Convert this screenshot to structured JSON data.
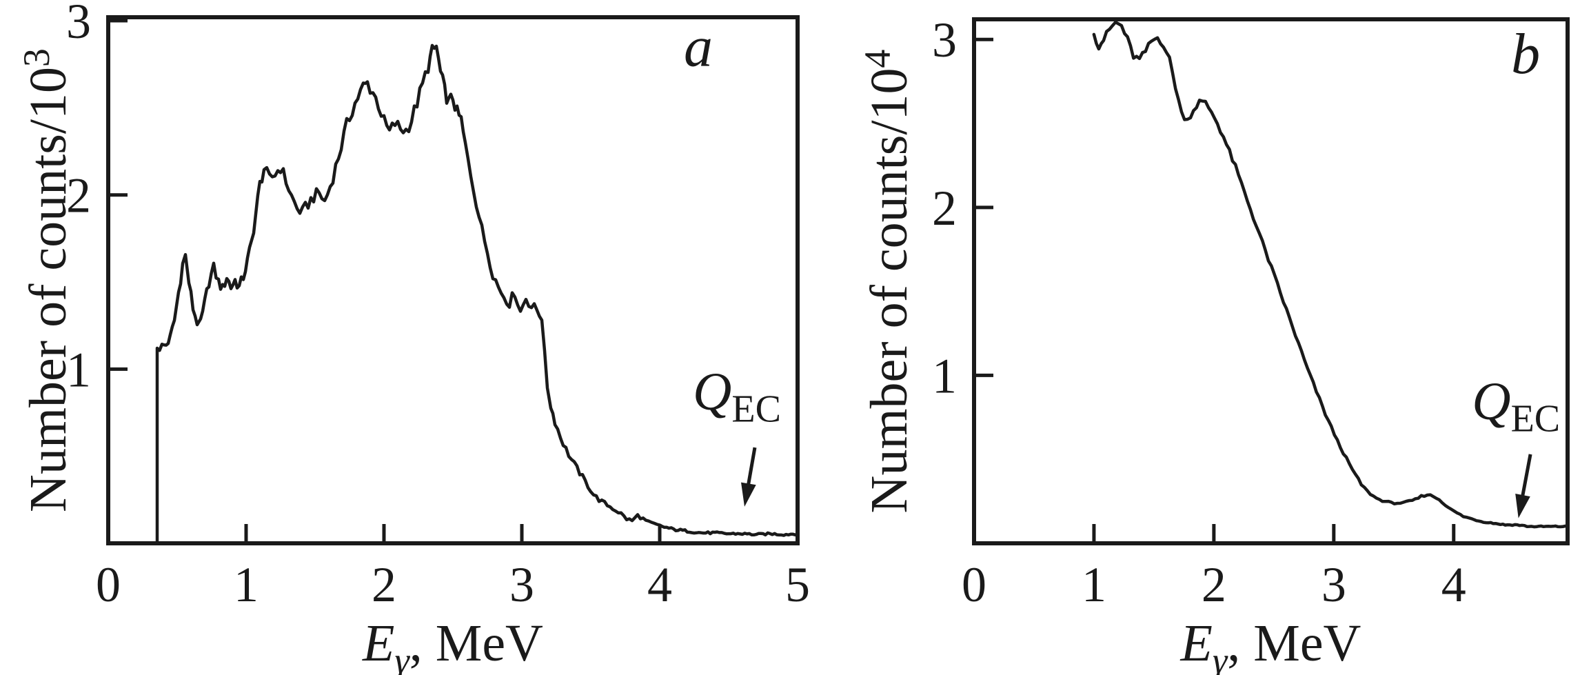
{
  "figure": {
    "background": "#ffffff",
    "ink_color": "#1a1a1a",
    "description": "Two gamma-ray singles spectra panels"
  },
  "chart_data": [
    {
      "id": "a",
      "type": "line",
      "panel_label": {
        "text": "a",
        "x": 4.28,
        "y": 2.74
      },
      "xlabel": {
        "symbol": "E",
        "subscript": "γ",
        "unit": ", MeV"
      },
      "ylabel": {
        "text": "Number of counts/10",
        "superscript": "3"
      },
      "xlim": [
        0,
        5
      ],
      "ylim": [
        0,
        3.02
      ],
      "xticks": [
        0,
        1,
        2,
        3,
        4,
        5
      ],
      "yticks": [
        1,
        2,
        3
      ],
      "grid": false,
      "legend": "none",
      "noise_amplitude": 0.045,
      "annotation": {
        "label": "Q",
        "label_subscript": "EC",
        "text_pos": {
          "x": 4.56,
          "y": 0.77
        },
        "arrow_from": {
          "x": 4.69,
          "y": 0.55
        },
        "arrow_to": {
          "x": 4.615,
          "y": 0.21
        }
      },
      "points": [
        [
          0.355,
          0.0
        ],
        [
          0.355,
          1.12
        ],
        [
          0.39,
          1.13
        ],
        [
          0.42,
          1.14
        ],
        [
          0.45,
          1.18
        ],
        [
          0.48,
          1.28
        ],
        [
          0.51,
          1.44
        ],
        [
          0.54,
          1.6
        ],
        [
          0.56,
          1.65
        ],
        [
          0.585,
          1.5
        ],
        [
          0.615,
          1.35
        ],
        [
          0.645,
          1.27
        ],
        [
          0.67,
          1.26
        ],
        [
          0.7,
          1.38
        ],
        [
          0.73,
          1.5
        ],
        [
          0.765,
          1.58
        ],
        [
          0.8,
          1.5
        ],
        [
          0.83,
          1.46
        ],
        [
          0.86,
          1.53
        ],
        [
          0.89,
          1.47
        ],
        [
          0.92,
          1.51
        ],
        [
          0.95,
          1.47
        ],
        [
          0.98,
          1.53
        ],
        [
          1.01,
          1.62
        ],
        [
          1.04,
          1.73
        ],
        [
          1.07,
          1.89
        ],
        [
          1.1,
          2.06
        ],
        [
          1.13,
          2.15
        ],
        [
          1.17,
          2.09
        ],
        [
          1.21,
          2.12
        ],
        [
          1.25,
          2.16
        ],
        [
          1.29,
          2.08
        ],
        [
          1.33,
          1.99
        ],
        [
          1.37,
          1.92
        ],
        [
          1.41,
          1.9
        ],
        [
          1.45,
          1.95
        ],
        [
          1.49,
          1.99
        ],
        [
          1.53,
          2.01
        ],
        [
          1.57,
          1.96
        ],
        [
          1.61,
          2.05
        ],
        [
          1.65,
          2.16
        ],
        [
          1.69,
          2.28
        ],
        [
          1.73,
          2.4
        ],
        [
          1.77,
          2.49
        ],
        [
          1.81,
          2.56
        ],
        [
          1.85,
          2.62
        ],
        [
          1.88,
          2.64
        ],
        [
          1.92,
          2.59
        ],
        [
          1.96,
          2.52
        ],
        [
          2.0,
          2.42
        ],
        [
          2.04,
          2.36
        ],
        [
          2.08,
          2.41
        ],
        [
          2.12,
          2.38
        ],
        [
          2.16,
          2.37
        ],
        [
          2.2,
          2.43
        ],
        [
          2.24,
          2.53
        ],
        [
          2.28,
          2.63
        ],
        [
          2.32,
          2.74
        ],
        [
          2.35,
          2.82
        ],
        [
          2.38,
          2.85
        ],
        [
          2.41,
          2.7
        ],
        [
          2.44,
          2.6
        ],
        [
          2.47,
          2.53
        ],
        [
          2.5,
          2.56
        ],
        [
          2.53,
          2.47
        ],
        [
          2.56,
          2.43
        ],
        [
          2.59,
          2.28
        ],
        [
          2.63,
          2.12
        ],
        [
          2.67,
          1.96
        ],
        [
          2.71,
          1.8
        ],
        [
          2.75,
          1.68
        ],
        [
          2.79,
          1.55
        ],
        [
          2.83,
          1.47
        ],
        [
          2.87,
          1.42
        ],
        [
          2.91,
          1.38
        ],
        [
          2.95,
          1.44
        ],
        [
          2.99,
          1.33
        ],
        [
          3.03,
          1.41
        ],
        [
          3.07,
          1.36
        ],
        [
          3.11,
          1.34
        ],
        [
          3.145,
          1.3
        ],
        [
          3.165,
          1.08
        ],
        [
          3.185,
          0.9
        ],
        [
          3.21,
          0.79
        ],
        [
          3.24,
          0.7
        ],
        [
          3.28,
          0.61
        ],
        [
          3.32,
          0.54
        ],
        [
          3.36,
          0.48
        ],
        [
          3.4,
          0.43
        ],
        [
          3.44,
          0.38
        ],
        [
          3.48,
          0.33
        ],
        [
          3.52,
          0.28
        ],
        [
          3.56,
          0.25
        ],
        [
          3.6,
          0.23
        ],
        [
          3.64,
          0.21
        ],
        [
          3.68,
          0.19
        ],
        [
          3.72,
          0.17
        ],
        [
          3.76,
          0.14
        ],
        [
          3.8,
          0.13
        ],
        [
          3.84,
          0.16
        ],
        [
          3.88,
          0.14
        ],
        [
          3.92,
          0.12
        ],
        [
          3.96,
          0.11
        ],
        [
          4.0,
          0.1
        ],
        [
          4.05,
          0.09
        ],
        [
          4.1,
          0.08
        ],
        [
          4.2,
          0.07
        ],
        [
          4.3,
          0.06
        ],
        [
          4.4,
          0.06
        ],
        [
          4.5,
          0.055
        ],
        [
          4.6,
          0.055
        ],
        [
          4.7,
          0.05
        ],
        [
          4.8,
          0.055
        ],
        [
          4.9,
          0.05
        ],
        [
          5.0,
          0.055
        ]
      ]
    },
    {
      "id": "b",
      "type": "line",
      "panel_label": {
        "text": "b",
        "x": 4.6,
        "y": 2.8
      },
      "xlabel": {
        "symbol": "E",
        "subscript": "γ",
        "unit": ", MeV"
      },
      "ylabel": {
        "text": "Number of counts/10",
        "superscript": "4"
      },
      "xlim": [
        0,
        4.95
      ],
      "ylim": [
        0,
        3.12
      ],
      "xticks": [
        0,
        1,
        2,
        3,
        4
      ],
      "yticks": [
        1,
        2,
        3
      ],
      "grid": false,
      "legend": "none",
      "noise_amplitude": 0.02,
      "annotation": {
        "label": "Q",
        "label_subscript": "EC",
        "text_pos": {
          "x": 4.52,
          "y": 0.74
        },
        "arrow_from": {
          "x": 4.64,
          "y": 0.53
        },
        "arrow_to": {
          "x": 4.54,
          "y": 0.15
        }
      },
      "points": [
        [
          1.0,
          3.03
        ],
        [
          1.04,
          2.96
        ],
        [
          1.08,
          3.0
        ],
        [
          1.13,
          3.06
        ],
        [
          1.18,
          3.1
        ],
        [
          1.23,
          3.08
        ],
        [
          1.28,
          3.0
        ],
        [
          1.33,
          2.9
        ],
        [
          1.38,
          2.88
        ],
        [
          1.43,
          2.93
        ],
        [
          1.48,
          2.99
        ],
        [
          1.53,
          3.01
        ],
        [
          1.58,
          2.97
        ],
        [
          1.63,
          2.88
        ],
        [
          1.68,
          2.72
        ],
        [
          1.73,
          2.56
        ],
        [
          1.78,
          2.52
        ],
        [
          1.83,
          2.58
        ],
        [
          1.88,
          2.63
        ],
        [
          1.93,
          2.62
        ],
        [
          1.98,
          2.57
        ],
        [
          2.03,
          2.5
        ],
        [
          2.08,
          2.42
        ],
        [
          2.13,
          2.33
        ],
        [
          2.18,
          2.24
        ],
        [
          2.23,
          2.14
        ],
        [
          2.28,
          2.04
        ],
        [
          2.33,
          1.94
        ],
        [
          2.38,
          1.84
        ],
        [
          2.43,
          1.74
        ],
        [
          2.48,
          1.64
        ],
        [
          2.53,
          1.54
        ],
        [
          2.58,
          1.44
        ],
        [
          2.63,
          1.34
        ],
        [
          2.68,
          1.24
        ],
        [
          2.73,
          1.14
        ],
        [
          2.78,
          1.04
        ],
        [
          2.83,
          0.95
        ],
        [
          2.88,
          0.86
        ],
        [
          2.93,
          0.77
        ],
        [
          2.98,
          0.69
        ],
        [
          3.03,
          0.61
        ],
        [
          3.08,
          0.54
        ],
        [
          3.13,
          0.47
        ],
        [
          3.18,
          0.41
        ],
        [
          3.23,
          0.35
        ],
        [
          3.28,
          0.31
        ],
        [
          3.33,
          0.28
        ],
        [
          3.38,
          0.26
        ],
        [
          3.43,
          0.25
        ],
        [
          3.48,
          0.24
        ],
        [
          3.53,
          0.24
        ],
        [
          3.58,
          0.24
        ],
        [
          3.63,
          0.25
        ],
        [
          3.68,
          0.26
        ],
        [
          3.73,
          0.28
        ],
        [
          3.78,
          0.29
        ],
        [
          3.83,
          0.28
        ],
        [
          3.88,
          0.26
        ],
        [
          3.93,
          0.23
        ],
        [
          3.98,
          0.2
        ],
        [
          4.03,
          0.18
        ],
        [
          4.08,
          0.16
        ],
        [
          4.13,
          0.15
        ],
        [
          4.23,
          0.13
        ],
        [
          4.33,
          0.12
        ],
        [
          4.43,
          0.11
        ],
        [
          4.53,
          0.11
        ],
        [
          4.63,
          0.1
        ],
        [
          4.73,
          0.1
        ],
        [
          4.83,
          0.1
        ],
        [
          4.93,
          0.1
        ]
      ]
    }
  ]
}
